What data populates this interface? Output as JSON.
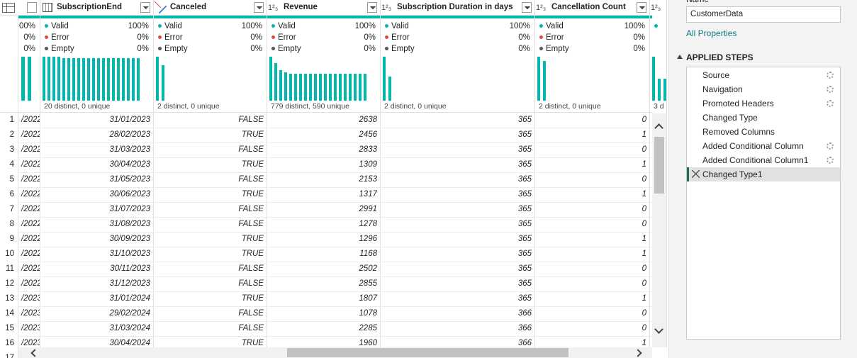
{
  "grid": {
    "profile_labels": [
      "Valid",
      "Error",
      "Empty"
    ],
    "columns": [
      {
        "valid": "00%",
        "error": "0%",
        "empty": "0%"
      },
      {
        "name": "SubscriptionEnd",
        "valid": "100%",
        "error": "0%",
        "empty": "0%",
        "distinct": "20 distinct, 0 unique"
      },
      {
        "name": "Canceled",
        "valid": "100%",
        "error": "0%",
        "empty": "0%",
        "distinct": "2 distinct, 0 unique"
      },
      {
        "name": "Revenue",
        "type": "1²₃",
        "valid": "100%",
        "error": "0%",
        "empty": "0%",
        "distinct": "779 distinct, 590 unique"
      },
      {
        "name": "Subscription Duration in days",
        "type": "1²₃",
        "valid": "100%",
        "error": "0%",
        "empty": "0%",
        "distinct": "2 distinct, 0 unique"
      },
      {
        "name": "Cancellation Count",
        "type": "1²₃",
        "valid": "100%",
        "error": "0%",
        "empty": "0%",
        "distinct": "2 distinct, 0 unique"
      },
      {
        "type": "1²₃",
        "distinct": "3 d"
      }
    ],
    "row_numbers": [
      1,
      2,
      3,
      4,
      5,
      6,
      7,
      8,
      9,
      10,
      11,
      12,
      13,
      14,
      15,
      16,
      17
    ],
    "rows": [
      [
        "/2022",
        "31/01/2023",
        "FALSE",
        2638,
        365,
        0
      ],
      [
        "/2022",
        "28/02/2023",
        "TRUE",
        2456,
        365,
        1
      ],
      [
        "/2022",
        "31/03/2023",
        "FALSE",
        2833,
        365,
        0
      ],
      [
        "/2022",
        "30/04/2023",
        "TRUE",
        1309,
        365,
        1
      ],
      [
        "/2022",
        "31/05/2023",
        "FALSE",
        2153,
        365,
        0
      ],
      [
        "/2022",
        "30/06/2023",
        "TRUE",
        1317,
        365,
        1
      ],
      [
        "/2022",
        "31/07/2023",
        "FALSE",
        2991,
        365,
        0
      ],
      [
        "/2022",
        "31/08/2023",
        "FALSE",
        1278,
        365,
        0
      ],
      [
        "/2022",
        "30/09/2023",
        "TRUE",
        1296,
        365,
        1
      ],
      [
        "/2022",
        "31/10/2023",
        "TRUE",
        1168,
        365,
        1
      ],
      [
        "/2022",
        "30/11/2023",
        "FALSE",
        2502,
        365,
        0
      ],
      [
        "/2022",
        "31/12/2023",
        "FALSE",
        2855,
        365,
        0
      ],
      [
        "/2023",
        "31/01/2024",
        "TRUE",
        1807,
        365,
        1
      ],
      [
        "/2023",
        "29/02/2024",
        "FALSE",
        1078,
        366,
        0
      ],
      [
        "/2023",
        "31/03/2024",
        "FALSE",
        2285,
        366,
        0
      ],
      [
        "/2023",
        "30/04/2024",
        "TRUE",
        1960,
        366,
        1
      ]
    ]
  },
  "panel": {
    "name_label": "Name",
    "name_value": "CustomerData",
    "all_properties": "All Properties",
    "applied_steps_title": "APPLIED STEPS",
    "steps": [
      {
        "label": "Source",
        "settings": true
      },
      {
        "label": "Navigation",
        "settings": true
      },
      {
        "label": "Promoted Headers",
        "settings": true
      },
      {
        "label": "Changed Type",
        "settings": false
      },
      {
        "label": "Removed Columns",
        "settings": false
      },
      {
        "label": "Added Conditional Column",
        "settings": true
      },
      {
        "label": "Added Conditional Column1",
        "settings": true
      },
      {
        "label": "Changed Type1",
        "settings": false,
        "selected": true
      }
    ]
  }
}
